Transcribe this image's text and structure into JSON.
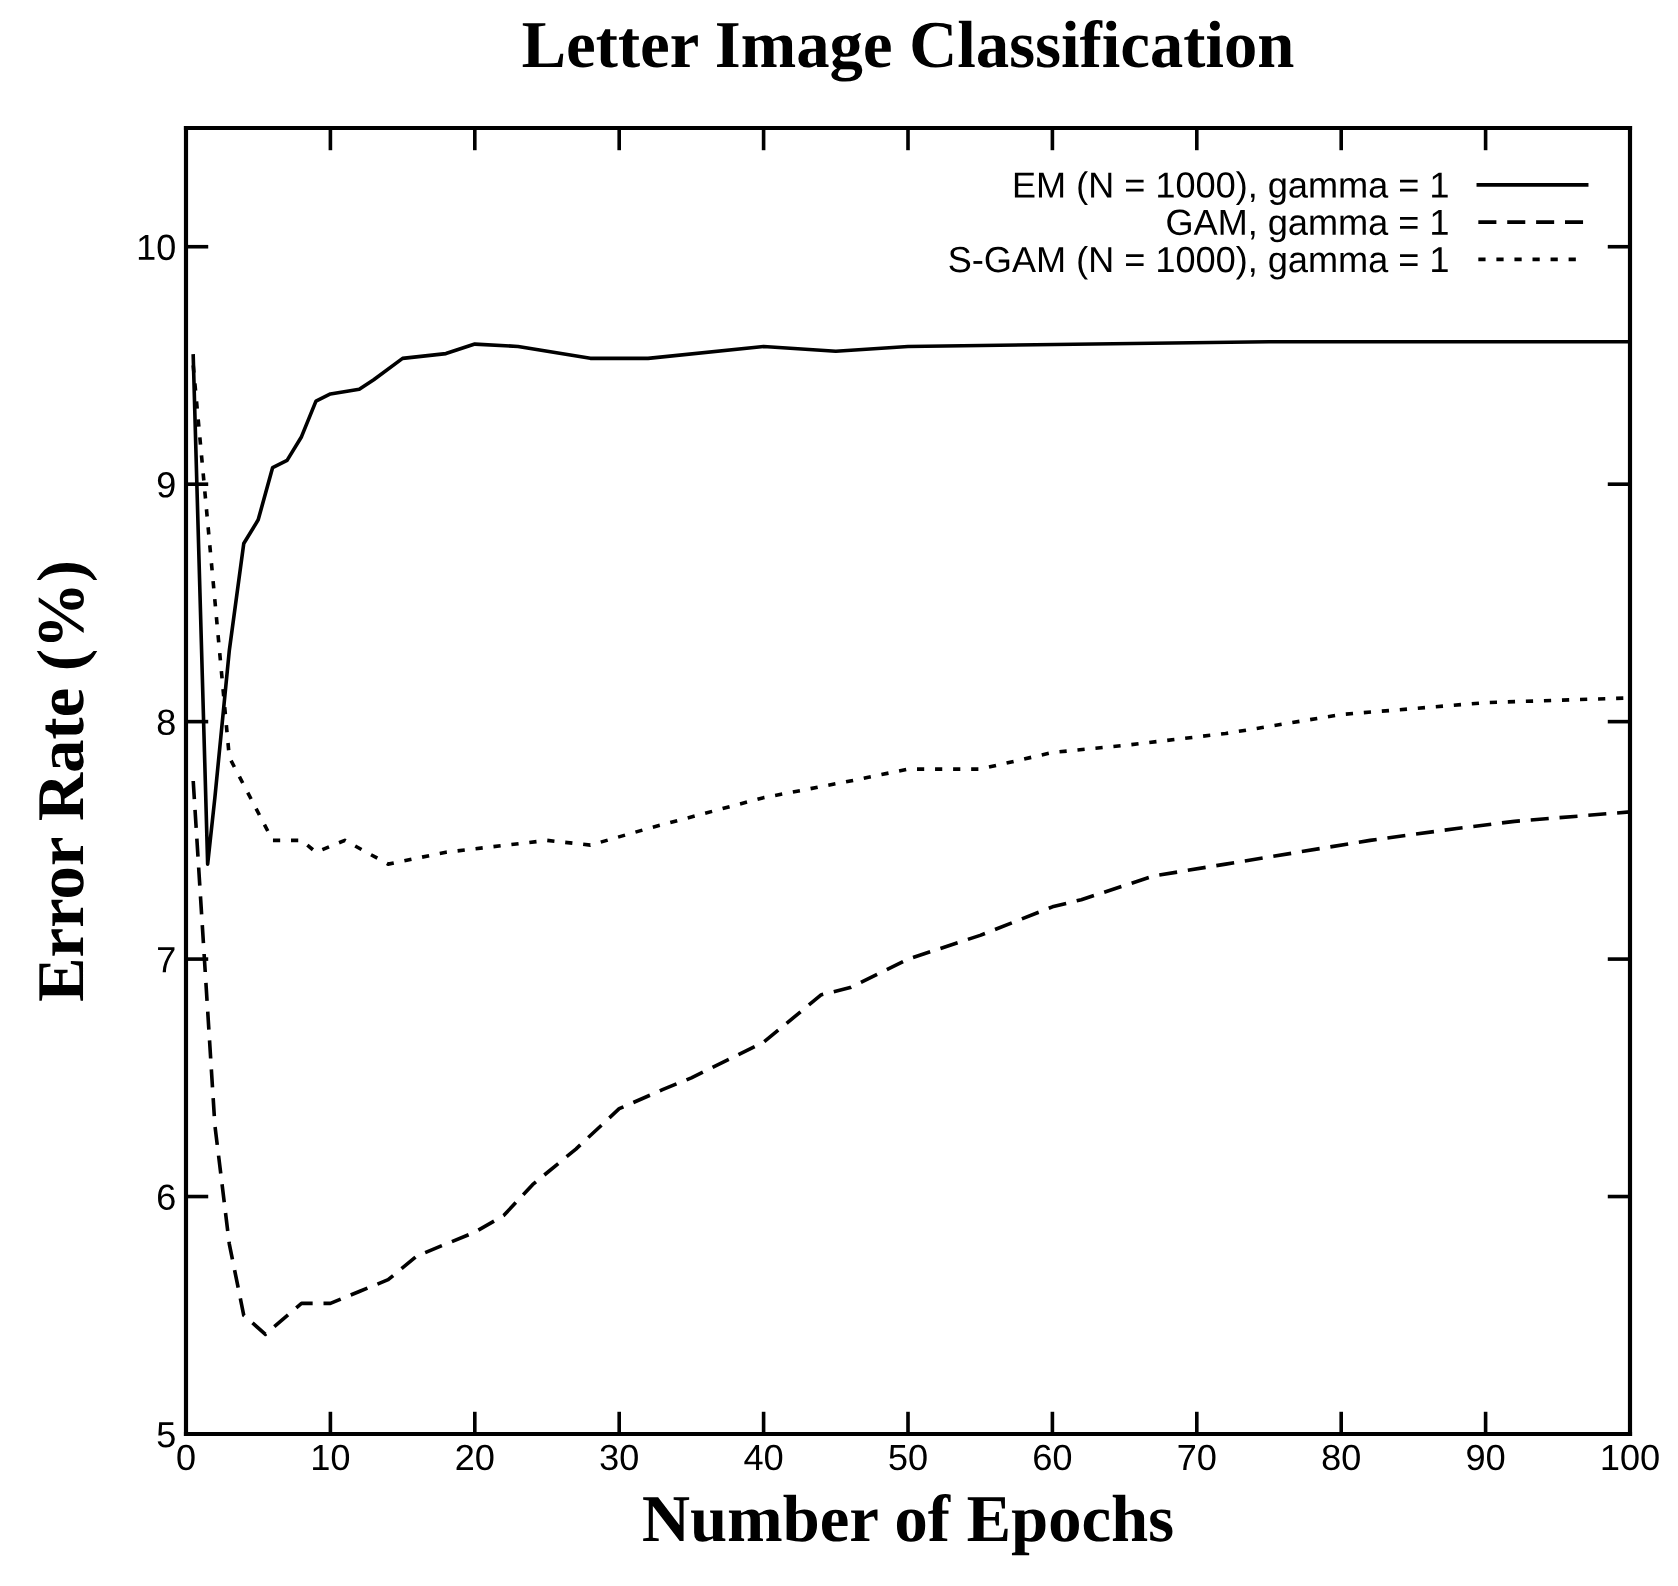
{
  "chart_data": {
    "type": "line",
    "title": "Letter Image Classification",
    "xlabel": "Number of Epochs",
    "ylabel": "Error Rate (%)",
    "xlim": [
      0,
      100
    ],
    "ylim": [
      5,
      10.5
    ],
    "xticks": [
      0,
      10,
      20,
      30,
      40,
      50,
      60,
      70,
      80,
      90,
      100
    ],
    "yticks": [
      5,
      6,
      7,
      8,
      9,
      10
    ],
    "grid": false,
    "legend": "top right",
    "marker": "none",
    "series": [
      {
        "name": "EM (N = 1000), gamma = 1",
        "color": "#000000",
        "line_style": "solid",
        "x": [
          0.5,
          1.5,
          2,
          3,
          4,
          5,
          6,
          7,
          8,
          9,
          10,
          12,
          13,
          15,
          18,
          20,
          23,
          28,
          32,
          40,
          45,
          50,
          75,
          100
        ],
        "values": [
          9.54,
          7.4,
          7.68,
          8.3,
          8.75,
          8.85,
          9.07,
          9.1,
          9.2,
          9.35,
          9.38,
          9.4,
          9.44,
          9.53,
          9.55,
          9.59,
          9.58,
          9.53,
          9.53,
          9.58,
          9.56,
          9.58,
          9.6,
          9.6
        ]
      },
      {
        "name": "GAM, gamma = 1",
        "color": "#000000",
        "line_style": "dashed",
        "x": [
          0.5,
          2,
          3,
          4,
          5.5,
          8,
          10,
          12,
          14,
          16,
          20,
          22,
          24,
          27,
          30,
          33,
          35,
          40,
          44,
          46,
          50,
          55,
          60,
          62,
          67,
          72,
          77,
          82,
          88,
          92,
          100
        ],
        "values": [
          7.75,
          6.3,
          5.8,
          5.5,
          5.42,
          5.55,
          5.55,
          5.6,
          5.65,
          5.75,
          5.85,
          5.92,
          6.05,
          6.2,
          6.37,
          6.45,
          6.5,
          6.65,
          6.85,
          6.88,
          7.0,
          7.1,
          7.22,
          7.25,
          7.35,
          7.4,
          7.45,
          7.5,
          7.55,
          7.58,
          7.62
        ]
      },
      {
        "name": "S-GAM (N = 1000), gamma = 1",
        "color": "#000000",
        "line_style": "dotted",
        "x": [
          0.5,
          3,
          6,
          8,
          9,
          11,
          14,
          18,
          25,
          28,
          32,
          40,
          46,
          50,
          55,
          60,
          65,
          72,
          80,
          90,
          100
        ],
        "values": [
          9.5,
          7.85,
          7.5,
          7.5,
          7.45,
          7.5,
          7.4,
          7.45,
          7.5,
          7.48,
          7.55,
          7.68,
          7.75,
          7.8,
          7.8,
          7.87,
          7.9,
          7.95,
          8.03,
          8.08,
          8.1
        ]
      }
    ]
  }
}
